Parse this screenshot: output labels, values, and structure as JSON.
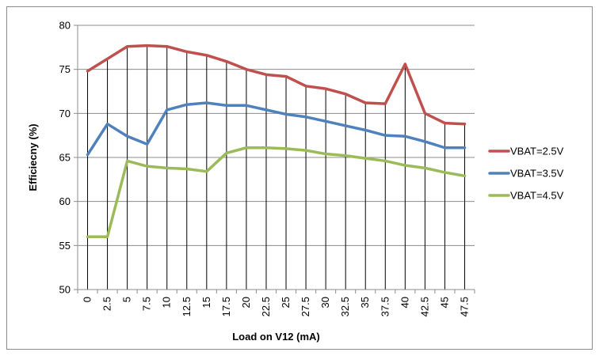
{
  "chart_data": {
    "type": "line",
    "title": "",
    "xlabel": "Load on V12 (mA)",
    "ylabel": "Efficiecny  (%)",
    "categories": [
      "0",
      "2.5",
      "5",
      "7.5",
      "10",
      "12.5",
      "15",
      "17.5",
      "20",
      "22.5",
      "25",
      "27.5",
      "30",
      "32.5",
      "35",
      "37.5",
      "40",
      "42.5",
      "45",
      "47.5"
    ],
    "ylim": [
      50,
      80
    ],
    "yticks": [
      "50",
      "55",
      "60",
      "65",
      "70",
      "75",
      "80"
    ],
    "grid": "horizontal and vertical drop lines",
    "legend_position": "right",
    "series": [
      {
        "name": "VBAT=2.5V",
        "color": "#c0504d",
        "values": [
          74.8,
          76.2,
          77.6,
          77.7,
          77.6,
          77.0,
          76.6,
          75.9,
          75.0,
          74.4,
          74.2,
          73.1,
          72.8,
          72.2,
          71.2,
          71.1,
          75.6,
          70.0,
          68.9,
          68.8
        ]
      },
      {
        "name": "VBAT=3.5V",
        "color": "#4f81bd",
        "values": [
          65.3,
          68.8,
          67.4,
          66.5,
          70.4,
          71.0,
          71.2,
          70.9,
          70.9,
          70.4,
          69.9,
          69.6,
          69.1,
          68.6,
          68.1,
          67.5,
          67.4,
          66.8,
          66.1,
          66.1
        ]
      },
      {
        "name": "VBAT=4.5V",
        "color": "#9bbb59",
        "values": [
          56.0,
          56.0,
          64.6,
          64.0,
          63.8,
          63.7,
          63.4,
          65.5,
          66.1,
          66.1,
          66.0,
          65.8,
          65.4,
          65.2,
          64.9,
          64.6,
          64.1,
          63.8,
          63.3,
          62.9
        ]
      }
    ]
  }
}
